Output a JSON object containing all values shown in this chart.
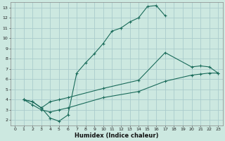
{
  "xlabel": "Humidex (Indice chaleur)",
  "bg_color": "#cce8e0",
  "grid_color": "#aacccc",
  "line_color": "#1a6b5a",
  "xlim": [
    -0.5,
    23.5
  ],
  "ylim": [
    1.5,
    13.5
  ],
  "xticks": [
    0,
    1,
    2,
    3,
    4,
    5,
    6,
    7,
    8,
    9,
    10,
    11,
    12,
    13,
    14,
    15,
    16,
    17,
    18,
    19,
    20,
    21,
    22,
    23
  ],
  "yticks": [
    2,
    3,
    4,
    5,
    6,
    7,
    8,
    9,
    10,
    11,
    12,
    13
  ],
  "line1_x": [
    1,
    2,
    3,
    4,
    5,
    6,
    7,
    8,
    9,
    10,
    11,
    12,
    13,
    14,
    15,
    16,
    17
  ],
  "line1_y": [
    4.0,
    3.8,
    3.2,
    2.2,
    1.9,
    2.5,
    6.6,
    7.6,
    8.5,
    9.5,
    10.7,
    11.0,
    11.6,
    12.0,
    13.1,
    13.2,
    12.2
  ],
  "line2_x": [
    1,
    2,
    3,
    4,
    5,
    6,
    10,
    14,
    17,
    20,
    21,
    22,
    23
  ],
  "line2_y": [
    4.0,
    3.8,
    3.2,
    3.8,
    4.0,
    4.2,
    5.1,
    5.9,
    8.6,
    7.2,
    7.3,
    7.2,
    6.6
  ],
  "line3_x": [
    1,
    2,
    3,
    4,
    5,
    6,
    10,
    14,
    17,
    20,
    21,
    22,
    23
  ],
  "line3_y": [
    4.0,
    3.5,
    3.0,
    2.8,
    3.0,
    3.2,
    4.2,
    4.8,
    5.8,
    6.4,
    6.5,
    6.6,
    6.6
  ]
}
